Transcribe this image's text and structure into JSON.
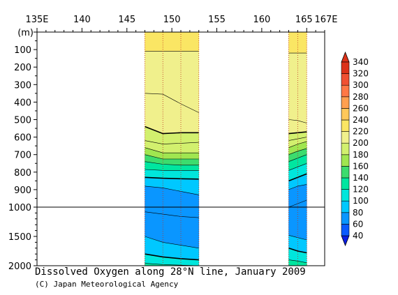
{
  "chart_data": {
    "type": "heatmap",
    "title": "Dissolved Oxygen along 28°N line, January 2009",
    "credit": "(C) Japan Meteorological Agency",
    "x_axis": {
      "ticks": [
        {
          "value": 135,
          "label": "135E"
        },
        {
          "value": 140,
          "label": "140"
        },
        {
          "value": 145,
          "label": "145"
        },
        {
          "value": 150,
          "label": "150"
        },
        {
          "value": 155,
          "label": "155"
        },
        {
          "value": 160,
          "label": "160"
        },
        {
          "value": 165,
          "label": "165"
        },
        {
          "value": 167,
          "label": "167E"
        }
      ],
      "range": [
        135,
        167
      ]
    },
    "y_axis": {
      "unit_label": "(m)",
      "upper_ticks": [
        100,
        200,
        300,
        400,
        500,
        600,
        700,
        800,
        900,
        1000
      ],
      "lower_ticks": [
        1500,
        2000
      ],
      "upper_range": [
        0,
        1000
      ],
      "lower_range": [
        1000,
        2000
      ],
      "break_line_depth": 1000
    },
    "colorbar": {
      "levels": [
        40,
        60,
        80,
        100,
        120,
        140,
        160,
        180,
        200,
        220,
        240,
        260,
        280,
        300,
        320,
        340
      ],
      "colors": [
        "#0a1ee6",
        "#0a5aff",
        "#0a96ff",
        "#00c8ff",
        "#00e6dc",
        "#00e6a0",
        "#3cdc6e",
        "#a0e650",
        "#d2f06e",
        "#f0f08c",
        "#fae664",
        "#ffc85a",
        "#ffa050",
        "#ff7846",
        "#f05032",
        "#dc3219"
      ],
      "extend": "both"
    },
    "sections": [
      {
        "name": "west",
        "lon_range": [
          147,
          153
        ],
        "stations": [
          147,
          149,
          151,
          153
        ],
        "contours": [
          {
            "value": 220,
            "depths": [
              110,
              110,
              110,
              110
            ]
          },
          {
            "value": 210,
            "depths": [
              350,
              355,
              410,
              460
            ]
          },
          {
            "value": 200,
            "depths": [
              540,
              580,
              575,
              575
            ]
          },
          {
            "value": 190,
            "depths": [
              620,
              640,
              635,
              630
            ]
          },
          {
            "value": 180,
            "depths": [
              660,
              690,
              690,
              690
            ]
          },
          {
            "value": 160,
            "depths": [
              700,
              725,
              725,
              725
            ]
          },
          {
            "value": 140,
            "depths": [
              740,
              755,
              760,
              760
            ]
          },
          {
            "value": 120,
            "depths": [
              785,
              790,
              790,
              790
            ]
          },
          {
            "value": 100,
            "depths": [
              830,
              835,
              838,
              840
            ]
          },
          {
            "value": 80,
            "depths": [
              880,
              890,
              910,
              930
            ]
          },
          {
            "value": 60,
            "depths": [
              1080,
              1120,
              1160,
              1180
            ]
          },
          {
            "value": 80,
            "depths": [
              1500,
              1600,
              1650,
              1700
            ]
          },
          {
            "value": 100,
            "depths": [
              1800,
              1850,
              1880,
              1900
            ]
          },
          {
            "value": 120,
            "depths": [
              1960,
              1980,
              1990,
              2000
            ]
          }
        ]
      },
      {
        "name": "east",
        "lon_range": [
          163,
          165
        ],
        "stations": [
          163,
          164,
          165
        ],
        "contours": [
          {
            "value": 220,
            "depths": [
              120,
              120,
              120
            ]
          },
          {
            "value": 210,
            "depths": [
              500,
              505,
              520
            ]
          },
          {
            "value": 200,
            "depths": [
              580,
              575,
              570
            ]
          },
          {
            "value": 190,
            "depths": [
              620,
              610,
              600
            ]
          },
          {
            "value": 180,
            "depths": [
              660,
              640,
              625
            ]
          },
          {
            "value": 160,
            "depths": [
              700,
              680,
              665
            ]
          },
          {
            "value": 140,
            "depths": [
              740,
              720,
              700
            ]
          },
          {
            "value": 120,
            "depths": [
              790,
              770,
              750
            ]
          },
          {
            "value": 100,
            "depths": [
              850,
              830,
              810
            ]
          },
          {
            "value": 80,
            "depths": [
              900,
              880,
              870
            ]
          },
          {
            "value": 60,
            "depths": [
              1000,
              980,
              960
            ]
          },
          {
            "value": 80,
            "depths": [
              1480,
              1520,
              1560
            ]
          },
          {
            "value": 100,
            "depths": [
              1700,
              1750,
              1780
            ]
          },
          {
            "value": 120,
            "depths": [
              1900,
              1920,
              1950
            ]
          }
        ]
      }
    ],
    "station_lines": [
      147,
      149,
      151,
      153,
      163,
      164,
      165
    ]
  }
}
